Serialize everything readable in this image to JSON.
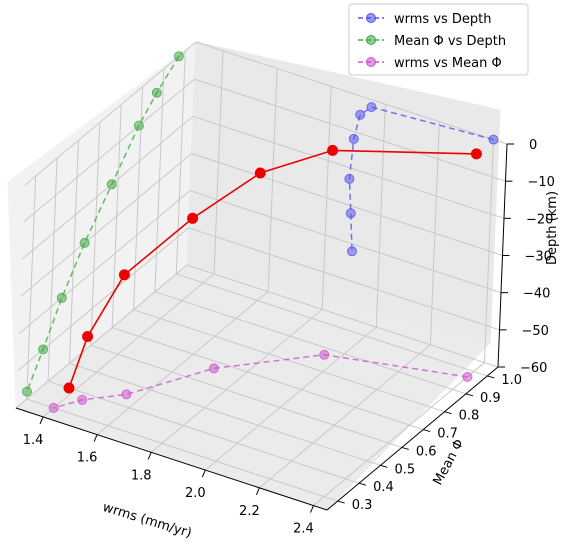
{
  "chart_data": {
    "type": "line",
    "projection": "3d",
    "xlabel": "wrms (mm/yr)",
    "ylabel": "Mean Φ",
    "zlabel": "Depth (km)",
    "xlim": [
      1.3,
      2.45
    ],
    "ylim": [
      0.25,
      1.05
    ],
    "zlim": [
      -60,
      0
    ],
    "x_ticks": [
      "1.4",
      "1.6",
      "1.8",
      "2.0",
      "2.2",
      "2.4"
    ],
    "y_ticks": [
      "0.3",
      "0.4",
      "0.5",
      "0.6",
      "0.7",
      "0.8",
      "0.9",
      "1.0"
    ],
    "z_ticks": [
      "0",
      "−10",
      "−20",
      "−30",
      "−40",
      "−50",
      "−60"
    ],
    "grid": true,
    "legend_position": "top-right",
    "legend": [
      "wrms vs Depth",
      "Mean Φ vs Depth",
      "wrms vs Mean Φ"
    ],
    "series": [
      {
        "name": "wrms vs Depth",
        "color": "#5555ee",
        "style": "dashed",
        "points": [
          [
            2.4,
            1.05,
            0
          ],
          [
            1.95,
            1.05,
            -2
          ],
          [
            1.91,
            1.05,
            -5
          ],
          [
            1.89,
            1.05,
            -12
          ],
          [
            1.88,
            1.05,
            -23
          ],
          [
            1.89,
            1.05,
            -32
          ],
          [
            1.9,
            1.05,
            -42
          ]
        ]
      },
      {
        "name": "Mean Φ vs Depth",
        "color": "#44aa44",
        "style": "dashed",
        "points": [
          [
            1.3,
            0.97,
            0
          ],
          [
            1.3,
            0.87,
            -5
          ],
          [
            1.3,
            0.79,
            -10
          ],
          [
            1.3,
            0.67,
            -20
          ],
          [
            1.3,
            0.55,
            -30
          ],
          [
            1.3,
            0.45,
            -40
          ],
          [
            1.3,
            0.37,
            -50
          ],
          [
            1.3,
            0.3,
            -58
          ]
        ]
      },
      {
        "name": "wrms vs Mean Φ",
        "color": "#cc55cc",
        "style": "dashed",
        "points": [
          [
            2.4,
            0.97,
            -60
          ],
          [
            1.95,
            0.87,
            -60
          ],
          [
            1.7,
            0.67,
            -60
          ],
          [
            1.55,
            0.45,
            -60
          ],
          [
            1.45,
            0.37,
            -60
          ],
          [
            1.4,
            0.3,
            -60
          ]
        ]
      },
      {
        "name": "",
        "color": "#ee0000",
        "style": "solid",
        "points": [
          [
            2.4,
            0.97,
            0
          ],
          [
            1.95,
            0.87,
            -5
          ],
          [
            1.75,
            0.79,
            -12
          ],
          [
            1.6,
            0.67,
            -22
          ],
          [
            1.45,
            0.55,
            -35
          ],
          [
            1.4,
            0.45,
            -48
          ],
          [
            1.4,
            0.37,
            -58
          ]
        ]
      }
    ]
  }
}
